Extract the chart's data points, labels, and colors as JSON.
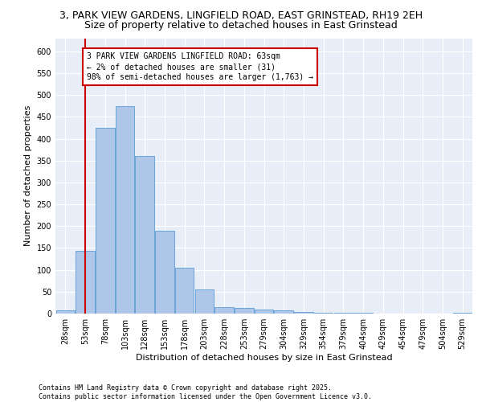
{
  "title_line1": "3, PARK VIEW GARDENS, LINGFIELD ROAD, EAST GRINSTEAD, RH19 2EH",
  "title_line2": "Size of property relative to detached houses in East Grinstead",
  "xlabel": "Distribution of detached houses by size in East Grinstead",
  "ylabel": "Number of detached properties",
  "bar_values": [
    8,
    143,
    425,
    475,
    360,
    190,
    105,
    55,
    14,
    12,
    10,
    8,
    4,
    2,
    1,
    2,
    0,
    0,
    0,
    0,
    2
  ],
  "bar_labels": [
    "28sqm",
    "53sqm",
    "78sqm",
    "103sqm",
    "128sqm",
    "153sqm",
    "178sqm",
    "203sqm",
    "228sqm",
    "253sqm",
    "279sqm",
    "304sqm",
    "329sqm",
    "354sqm",
    "379sqm",
    "404sqm",
    "429sqm",
    "454sqm",
    "479sqm",
    "504sqm",
    "529sqm"
  ],
  "bar_color": "#aec6e8",
  "bar_edge_color": "#5b9bd5",
  "vline_color": "#cc0000",
  "vline_x": 1.0,
  "annotation_text": "3 PARK VIEW GARDENS LINGFIELD ROAD: 63sqm\n← 2% of detached houses are smaller (31)\n98% of semi-detached houses are larger (1,763) →",
  "annotation_box_color": "#ffffff",
  "annotation_box_edge": "#cc0000",
  "ylim": [
    0,
    630
  ],
  "yticks": [
    0,
    50,
    100,
    150,
    200,
    250,
    300,
    350,
    400,
    450,
    500,
    550,
    600
  ],
  "bg_color": "#e8eef8",
  "grid_color": "#ffffff",
  "footer_text": "Contains HM Land Registry data © Crown copyright and database right 2025.\nContains public sector information licensed under the Open Government Licence v3.0.",
  "title_fontsize": 9,
  "subtitle_fontsize": 9,
  "axis_label_fontsize": 8,
  "tick_fontsize": 7,
  "annotation_fontsize": 7,
  "footer_fontsize": 6
}
